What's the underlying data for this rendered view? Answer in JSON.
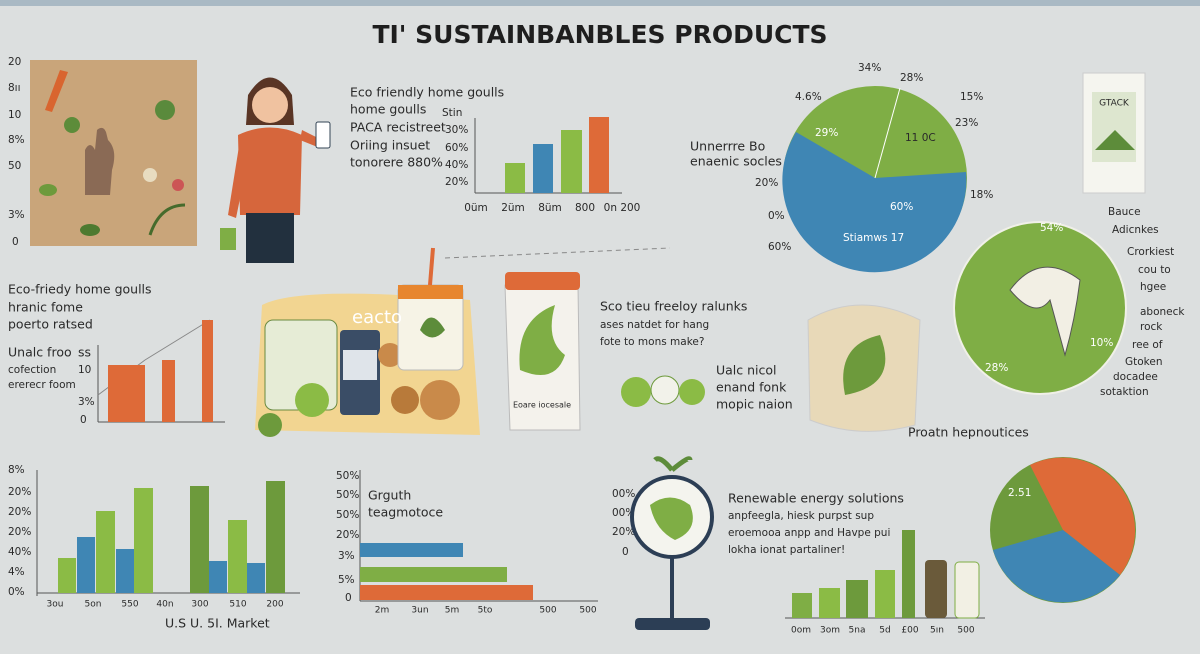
{
  "title": "TI' SUSTAINBANBLES PRODUCTS",
  "left_axis": [
    "20",
    "8ıı",
    "10",
    "8%",
    "50",
    "3%",
    "0"
  ],
  "home_goods": {
    "lines": [
      "Eco friendly home goulls",
      "home goulls",
      "PACA recistreet",
      "Oriing insuet",
      "tonorere 880%"
    ],
    "y_labels": [
      "Stin",
      "30%",
      "60%",
      "40%",
      "20%"
    ],
    "x_labels": [
      "0üm",
      "2üm",
      "8üm",
      "800",
      "0n 200"
    ]
  },
  "organic_pie": {
    "caption": [
      "Unnerrre Bo",
      "enaenic socles"
    ],
    "side_labels": [
      "20%",
      "0%",
      "60%"
    ],
    "labels": [
      "34%",
      "28%",
      "15%",
      "4.6%",
      "29%",
      "11 0C",
      "23%",
      "18%",
      "60%",
      "Stiamws 17"
    ]
  },
  "card": "GTACK",
  "side_list": [
    "Bauce",
    "Adicnkes",
    "Crorkiest",
    "cou to",
    "hgee",
    "aboneck",
    "rock",
    "ree of",
    "Gtoken",
    "docadee",
    "sotaktion"
  ],
  "green_pie": [
    "54%",
    "10%",
    "28%"
  ],
  "collection": {
    "lines": [
      "Eco-friedy home goulls",
      "hranic fome",
      "poerto ratsed",
      "Unalc froo",
      "ss",
      "cofection",
      "ererecr foom"
    ],
    "y_labels": [
      "10",
      "3%",
      "0"
    ]
  },
  "products": {
    "tray": "eacto",
    "jar": "Eoare iocesale"
  },
  "freeloy": {
    "lines": [
      "Sco tieu freeloy ralunks",
      "ases natdet for hang",
      "fote to mons make?"
    ],
    "sub": [
      "Ualc nicol",
      "enand fonk",
      "mopic naion"
    ]
  },
  "market": {
    "y_labels": [
      "8%",
      "20%",
      "20%",
      "20%",
      "40%",
      "4%",
      "0%"
    ],
    "x_labels": [
      "3ou",
      "5on",
      "550",
      "40n",
      "300",
      "510",
      "200"
    ],
    "caption": "U.S U. 5I. Market"
  },
  "growth": {
    "title": [
      "Grguth",
      "teagmotoce"
    ],
    "y_labels": [
      "50%",
      "50%",
      "50%",
      "20%",
      "3%",
      "5%",
      "0"
    ],
    "x_labels": [
      "2m",
      "3un",
      "5m",
      "5to",
      "500",
      "500"
    ]
  },
  "renewable": {
    "y_labels": [
      "00%",
      "00%",
      "20%",
      "0"
    ],
    "lines": [
      "Renewable energy solutions",
      "anpfeegla, hiesk purpst sup",
      "eroemooa anpp and Havpe pui",
      "lokha ionat partaliner!"
    ]
  },
  "premium": {
    "caption": "Proatn hepnoutices",
    "pie_label": "2.51",
    "x_labels": [
      "0om",
      "3om",
      "5na",
      "5d",
      "£00",
      "5ın",
      "500"
    ]
  }
}
